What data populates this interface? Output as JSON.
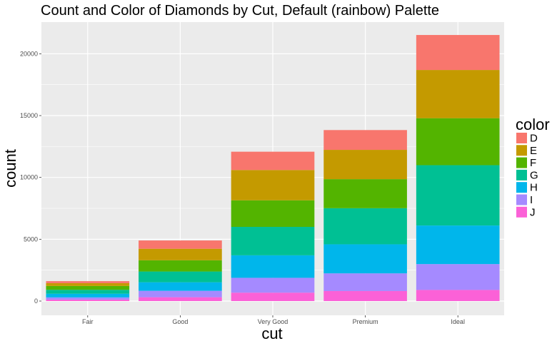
{
  "chart_data": {
    "type": "bar",
    "stacked": true,
    "title": "Count and Color of Diamonds by Cut, Default (rainbow) Palette",
    "xlabel": "cut",
    "ylabel": "count",
    "categories": [
      "Fair",
      "Good",
      "Very Good",
      "Premium",
      "Ideal"
    ],
    "ylim": [
      0,
      22500
    ],
    "yticks": [
      0,
      5000,
      10000,
      15000,
      20000
    ],
    "ytick_labels": [
      "0",
      "5000",
      "10000",
      "15000",
      "20000"
    ],
    "grid": true,
    "panel_background": "#ebebeb",
    "grid_color": "#ffffff",
    "legend": {
      "title": "color",
      "placement": "right"
    },
    "series": [
      {
        "name": "J",
        "color": "#FB61D7",
        "values": [
          120,
          310,
          680,
          810,
          900
        ]
      },
      {
        "name": "I",
        "color": "#A58AFF",
        "values": [
          175,
          520,
          1200,
          1430,
          2090
        ]
      },
      {
        "name": "H",
        "color": "#00B6EB",
        "values": [
          300,
          690,
          1820,
          2350,
          3120
        ]
      },
      {
        "name": "G",
        "color": "#00C094",
        "values": [
          315,
          870,
          2300,
          2920,
          4880
        ]
      },
      {
        "name": "F",
        "color": "#53B400",
        "values": [
          310,
          910,
          2150,
          2350,
          3800
        ]
      },
      {
        "name": "E",
        "color": "#C49A00",
        "values": [
          225,
          930,
          2450,
          2370,
          3900
        ]
      },
      {
        "name": "D",
        "color": "#F8766D",
        "values": [
          165,
          670,
          1480,
          1600,
          2830
        ]
      }
    ]
  }
}
